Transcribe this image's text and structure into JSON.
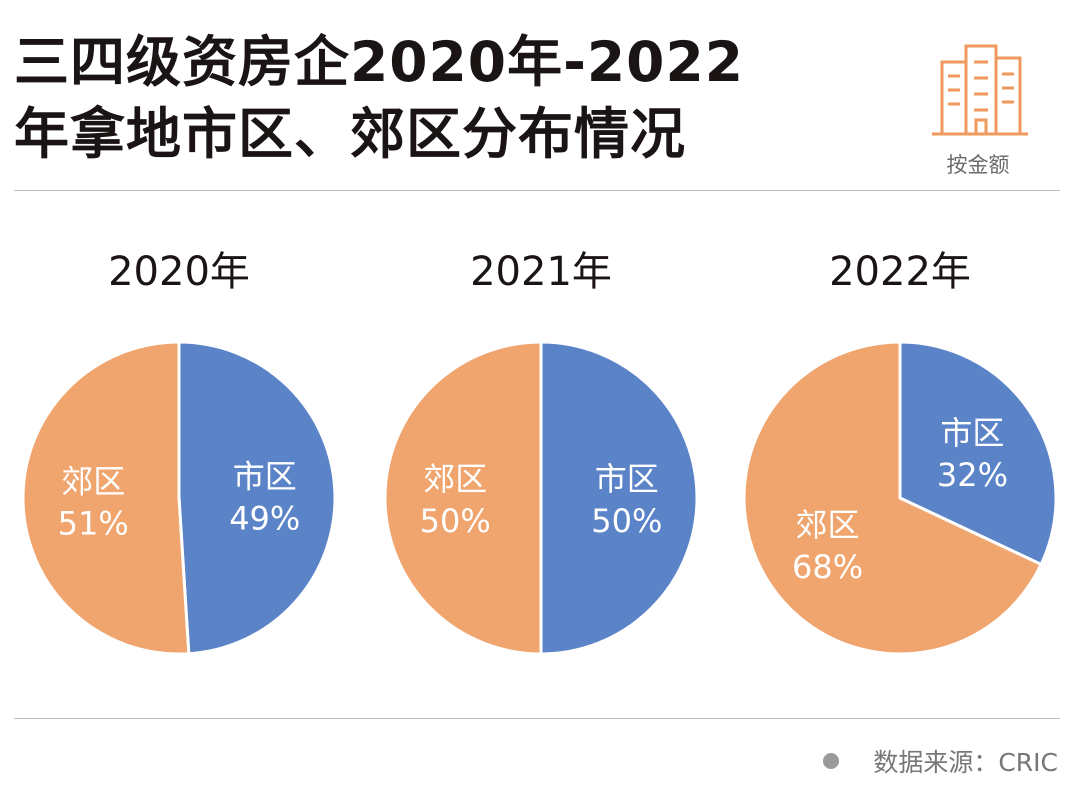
{
  "title": {
    "line1": "三四级资房企2020年-2022",
    "line2": "年拿地市区、郊区分布情况"
  },
  "badge": {
    "icon": "buildings-icon",
    "label": "按金额"
  },
  "source": {
    "text": "数据来源：CRIC"
  },
  "colors": {
    "city": "#5b83c8",
    "suburb": "#f0a56e",
    "text_light": "#ffffff",
    "title": "#1a1414"
  },
  "chart_data": [
    {
      "type": "pie",
      "title": "2020年",
      "slices": [
        {
          "label": "市区",
          "value": 49,
          "value_label": "49%"
        },
        {
          "label": "郊区",
          "value": 51,
          "value_label": "51%"
        }
      ]
    },
    {
      "type": "pie",
      "title": "2021年",
      "slices": [
        {
          "label": "市区",
          "value": 50,
          "value_label": "50%"
        },
        {
          "label": "郊区",
          "value": 50,
          "value_label": "50%"
        }
      ]
    },
    {
      "type": "pie",
      "title": "2022年",
      "slices": [
        {
          "label": "市区",
          "value": 32,
          "value_label": "32%"
        },
        {
          "label": "郊区",
          "value": 68,
          "value_label": "68%"
        }
      ]
    }
  ]
}
